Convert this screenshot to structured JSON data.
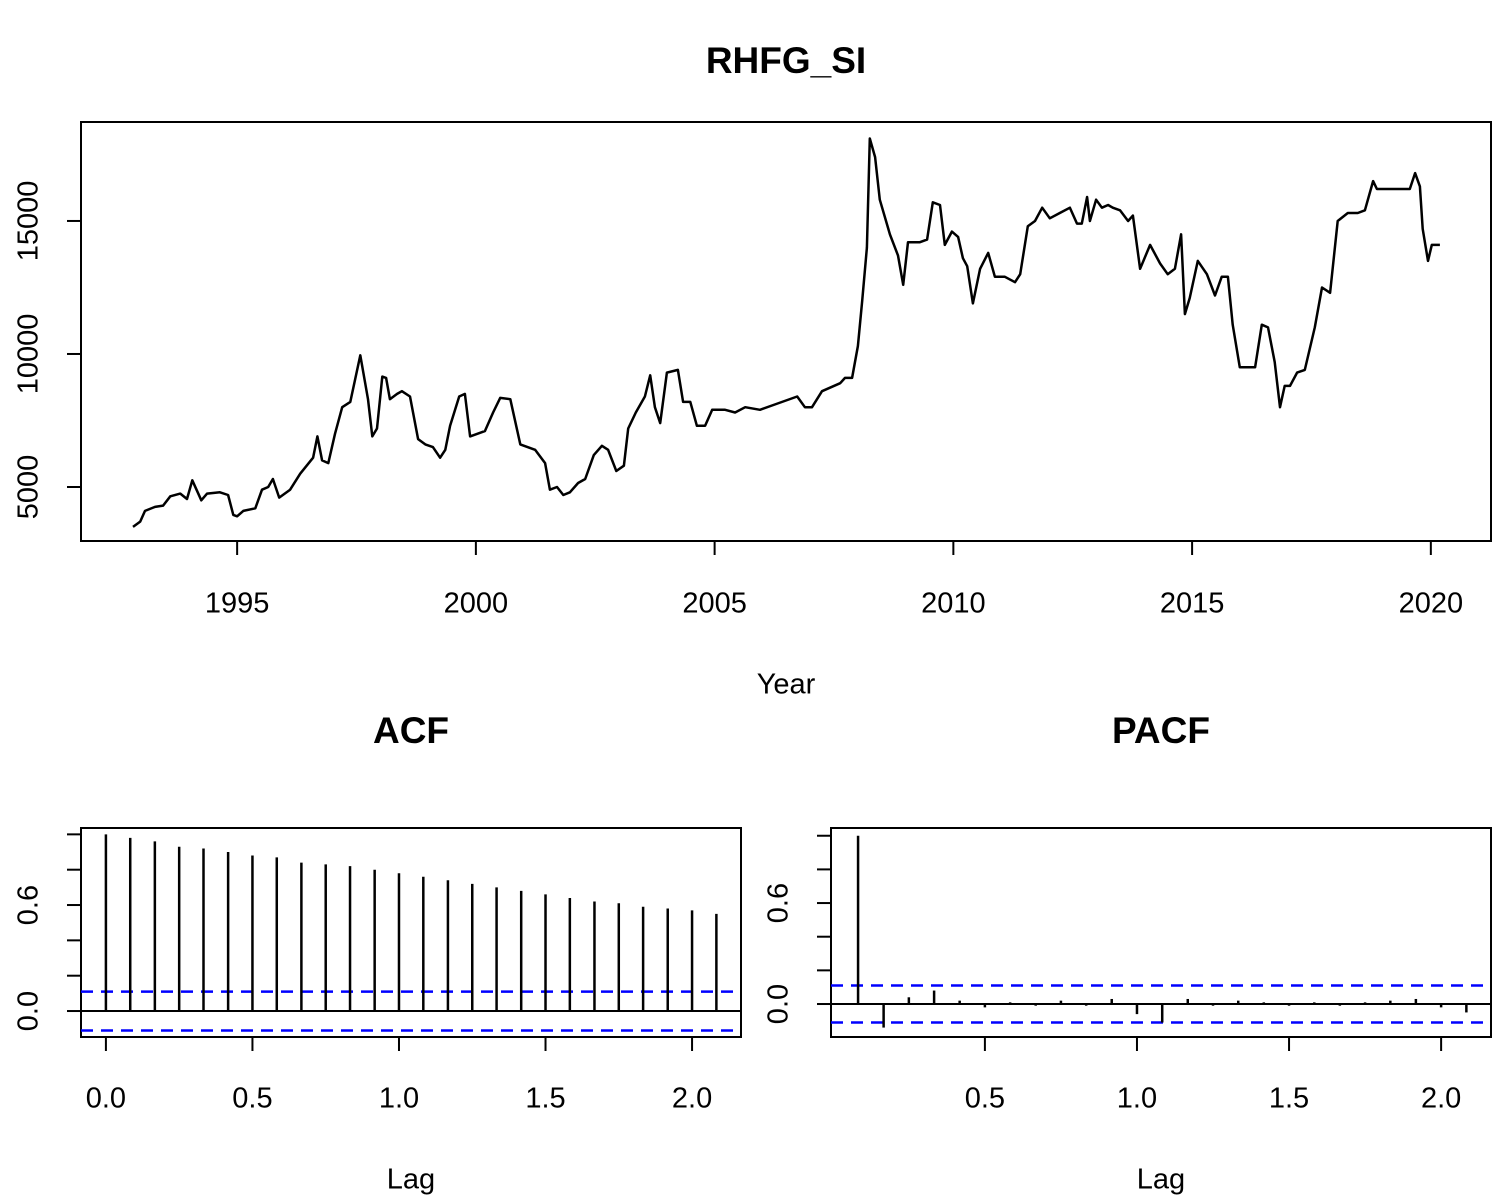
{
  "chart_data": [
    {
      "type": "line",
      "title": "RHFG_SI",
      "xlabel": "Year",
      "color": "#000000",
      "x": [
        1992.82,
        1992.97,
        1993.07,
        1993.28,
        1993.45,
        1993.6,
        1993.81,
        1993.95,
        1994.06,
        1994.25,
        1994.37,
        1994.64,
        1994.81,
        1994.92,
        1995.0,
        1995.13,
        1995.38,
        1995.52,
        1995.65,
        1995.75,
        1995.88,
        1996.11,
        1996.32,
        1996.59,
        1996.68,
        1996.78,
        1996.91,
        1997.05,
        1997.2,
        1997.37,
        1997.58,
        1997.74,
        1997.83,
        1997.93,
        1998.04,
        1998.12,
        1998.2,
        1998.35,
        1998.45,
        1998.62,
        1998.79,
        1998.94,
        1999.1,
        1999.25,
        1999.36,
        1999.46,
        1999.65,
        1999.77,
        1999.88,
        2000.19,
        2000.36,
        2000.51,
        2000.72,
        2000.93,
        2001.24,
        2001.45,
        2001.55,
        2001.7,
        2001.83,
        2001.97,
        2002.14,
        2002.29,
        2002.47,
        2002.64,
        2002.77,
        2002.94,
        2003.1,
        2003.19,
        2003.35,
        2003.54,
        2003.65,
        2003.75,
        2003.86,
        2004.0,
        2004.23,
        2004.34,
        2004.49,
        2004.63,
        2004.8,
        2004.95,
        2005.22,
        2005.43,
        2005.64,
        2005.95,
        2006.26,
        2006.73,
        2006.89,
        2007.04,
        2007.25,
        2007.63,
        2007.73,
        2007.88,
        2008.0,
        2008.09,
        2008.19,
        2008.25,
        2008.36,
        2008.46,
        2008.67,
        2008.84,
        2008.95,
        2009.05,
        2009.3,
        2009.45,
        2009.57,
        2009.72,
        2009.82,
        2009.97,
        2010.1,
        2010.2,
        2010.29,
        2010.41,
        2010.56,
        2010.73,
        2010.87,
        2011.08,
        2011.29,
        2011.4,
        2011.56,
        2011.71,
        2011.86,
        2012.02,
        2012.23,
        2012.44,
        2012.59,
        2012.69,
        2012.8,
        2012.86,
        2012.99,
        2013.11,
        2013.24,
        2013.34,
        2013.49,
        2013.66,
        2013.76,
        2013.91,
        2014.12,
        2014.33,
        2014.49,
        2014.64,
        2014.77,
        2014.85,
        2014.95,
        2015.12,
        2015.31,
        2015.48,
        2015.62,
        2015.75,
        2015.85,
        2016.0,
        2016.32,
        2016.46,
        2016.59,
        2016.73,
        2016.84,
        2016.94,
        2017.05,
        2017.2,
        2017.36,
        2017.57,
        2017.72,
        2017.89,
        2018.05,
        2018.26,
        2018.47,
        2018.62,
        2018.79,
        2018.87,
        2019.35,
        2019.56,
        2019.67,
        2019.77,
        2019.83,
        2019.94,
        2020.02,
        2020.19
      ],
      "values": [
        3500,
        3700,
        4100,
        4250,
        4300,
        4650,
        4750,
        4550,
        5250,
        4500,
        4750,
        4800,
        4700,
        3950,
        3900,
        4100,
        4200,
        4900,
        5000,
        5300,
        4600,
        4900,
        5500,
        6100,
        6900,
        6000,
        5900,
        7000,
        8000,
        8200,
        9950,
        8300,
        6900,
        7200,
        9150,
        9100,
        8300,
        8500,
        8600,
        8400,
        6800,
        6600,
        6500,
        6100,
        6400,
        7300,
        8400,
        8500,
        6900,
        7100,
        7800,
        8350,
        8300,
        6600,
        6400,
        5900,
        4900,
        5000,
        4700,
        4800,
        5150,
        5300,
        6200,
        6550,
        6400,
        5600,
        5800,
        7200,
        7800,
        8400,
        9200,
        8000,
        7400,
        9300,
        9400,
        8200,
        8200,
        7300,
        7300,
        7900,
        7900,
        7800,
        8000,
        7900,
        8100,
        8400,
        8000,
        8000,
        8600,
        8900,
        9100,
        9100,
        10300,
        12000,
        14000,
        18100,
        17400,
        15800,
        14500,
        13700,
        12600,
        14200,
        14200,
        14300,
        15700,
        15600,
        14100,
        14600,
        14400,
        13600,
        13300,
        11900,
        13200,
        13800,
        12900,
        12900,
        12700,
        13000,
        14800,
        15000,
        15500,
        15100,
        15300,
        15500,
        14900,
        14900,
        15900,
        15000,
        15800,
        15500,
        15600,
        15500,
        15400,
        15000,
        15200,
        13200,
        14100,
        13400,
        13000,
        13200,
        14500,
        11500,
        12100,
        13500,
        13000,
        12200,
        12900,
        12900,
        11100,
        9500,
        9500,
        11100,
        11000,
        9700,
        8000,
        8800,
        8800,
        9300,
        9400,
        11000,
        12500,
        12300,
        15000,
        15300,
        15300,
        15400,
        16500,
        16200,
        16200,
        16200,
        16800,
        16300,
        14700,
        13500,
        14100,
        14100
      ],
      "xlim": [
        1991.73,
        2021.26
      ],
      "ylim": [
        2970,
        18720
      ],
      "xticks": [
        1995,
        2000,
        2005,
        2010,
        2015,
        2020
      ],
      "yticks": [
        5000,
        10000,
        15000
      ]
    },
    {
      "type": "stem",
      "title": "ACF",
      "xlabel": "Lag",
      "color": "#000000",
      "x": [
        0,
        0.083,
        0.167,
        0.25,
        0.333,
        0.417,
        0.5,
        0.583,
        0.667,
        0.75,
        0.833,
        0.917,
        1,
        1.083,
        1.167,
        1.25,
        1.333,
        1.417,
        1.5,
        1.583,
        1.667,
        1.75,
        1.833,
        1.917,
        2,
        2.083
      ],
      "values": [
        1.0,
        0.98,
        0.96,
        0.93,
        0.92,
        0.9,
        0.88,
        0.87,
        0.84,
        0.83,
        0.82,
        0.8,
        0.78,
        0.76,
        0.74,
        0.72,
        0.7,
        0.68,
        0.66,
        0.64,
        0.62,
        0.61,
        0.59,
        0.58,
        0.57,
        0.55
      ],
      "ci_lines": [
        0.11,
        -0.11
      ],
      "ci_color": "#0000ff",
      "xlim": [
        -0.085,
        2.167
      ],
      "ylim": [
        -0.147,
        1.036
      ],
      "xticks": [
        {
          "value": 0,
          "label": "0.0"
        },
        0.5,
        {
          "value": 1,
          "label": "1.0"
        },
        1.5,
        {
          "value": 2,
          "label": "2.0"
        }
      ],
      "yticks": [
        {
          "value": 0,
          "label": "0.0"
        },
        {
          "value": 0.2,
          "label": null
        },
        {
          "value": 0.4,
          "label": null
        },
        0.6,
        {
          "value": 0.8,
          "label": null
        },
        {
          "value": 1,
          "label": null
        }
      ]
    },
    {
      "type": "stem",
      "title": "PACF",
      "xlabel": "Lag",
      "color": "#000000",
      "x": [
        0.083,
        0.167,
        0.25,
        0.333,
        0.417,
        0.5,
        0.583,
        0.667,
        0.75,
        0.833,
        0.917,
        1,
        1.083,
        1.167,
        1.25,
        1.333,
        1.417,
        1.5,
        1.583,
        1.667,
        1.75,
        1.833,
        1.917,
        2,
        2.083
      ],
      "values": [
        1.0,
        -0.14,
        0.04,
        0.08,
        0.02,
        -0.02,
        0.01,
        -0.01,
        0.02,
        -0.01,
        0.03,
        -0.06,
        -0.11,
        0.03,
        -0.01,
        0.02,
        0.01,
        -0.01,
        0.01,
        -0.01,
        0.01,
        0.02,
        0.03,
        -0.02,
        -0.05
      ],
      "ci_lines": [
        0.11,
        -0.11
      ],
      "ci_color": "#0000ff",
      "xlim": [
        -0.006,
        2.164
      ],
      "ylim": [
        -0.196,
        1.046
      ],
      "xticks": [
        0.5,
        {
          "value": 1,
          "label": "1.0"
        },
        1.5,
        {
          "value": 2,
          "label": "2.0"
        }
      ],
      "yticks": [
        {
          "value": 0,
          "label": "0.0"
        },
        {
          "value": 0.2,
          "label": null
        },
        {
          "value": 0.4,
          "label": null
        },
        0.6,
        {
          "value": 0.8,
          "label": null
        },
        {
          "value": 1,
          "label": null
        }
      ]
    }
  ]
}
